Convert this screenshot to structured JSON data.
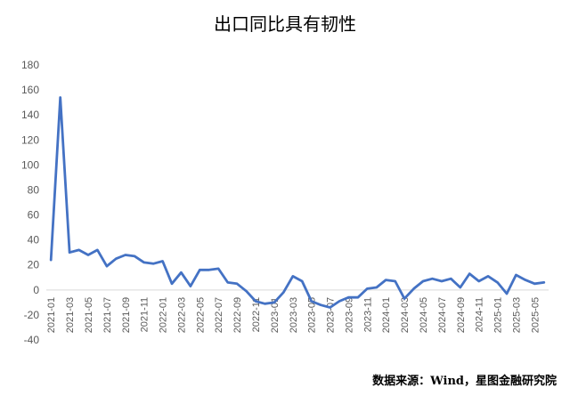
{
  "chart_data": {
    "type": "line",
    "title": "出口同比具有韧性",
    "source": "数据来源：Wind，星图金融研究院",
    "xlabel": "",
    "ylabel": "",
    "ylim": [
      -40,
      180
    ],
    "yticks": [
      -40,
      -20,
      0,
      20,
      40,
      60,
      80,
      100,
      120,
      140,
      160,
      180
    ],
    "xtick_labels": [
      "2021-01",
      "2021-03",
      "2021-05",
      "2021-07",
      "2021-09",
      "2021-11",
      "2022-01",
      "2022-03",
      "2022-05",
      "2022-07",
      "2022-09",
      "2022-11",
      "2023-01",
      "2023-03",
      "2023-05",
      "2023-07",
      "2023-09",
      "2023-11",
      "2024-01",
      "2024-03",
      "2024-05",
      "2024-07",
      "2024-09",
      "2024-11",
      "2025-01",
      "2025-03",
      "2025-05"
    ],
    "grid": false,
    "color": "#4472C4",
    "x": [
      "2021-01",
      "2021-02",
      "2021-03",
      "2021-04",
      "2021-05",
      "2021-06",
      "2021-07",
      "2021-08",
      "2021-09",
      "2021-10",
      "2021-11",
      "2021-12",
      "2022-01",
      "2022-02",
      "2022-03",
      "2022-04",
      "2022-05",
      "2022-06",
      "2022-07",
      "2022-08",
      "2022-09",
      "2022-10",
      "2022-11",
      "2022-12",
      "2023-01",
      "2023-02",
      "2023-03",
      "2023-04",
      "2023-05",
      "2023-06",
      "2023-07",
      "2023-08",
      "2023-09",
      "2023-10",
      "2023-11",
      "2023-12",
      "2024-01",
      "2024-02",
      "2024-03",
      "2024-04",
      "2024-05",
      "2024-06",
      "2024-07",
      "2024-08",
      "2024-09",
      "2024-10",
      "2024-11",
      "2024-12",
      "2025-01",
      "2025-02",
      "2025-03",
      "2025-04",
      "2025-05",
      "2025-06"
    ],
    "series": [
      {
        "values": [
          24,
          154,
          30,
          32,
          28,
          32,
          19,
          25,
          28,
          27,
          22,
          21,
          23,
          5,
          14,
          3,
          16,
          16,
          17,
          6,
          5,
          -1,
          -9,
          -11,
          -10,
          -2,
          11,
          7,
          -9,
          -12,
          -14,
          -9,
          -6,
          -6,
          1,
          2,
          8,
          7,
          -7,
          1,
          7,
          9,
          7,
          9,
          2,
          13,
          7,
          11,
          6,
          -3,
          12,
          8,
          5,
          6
        ]
      }
    ]
  }
}
